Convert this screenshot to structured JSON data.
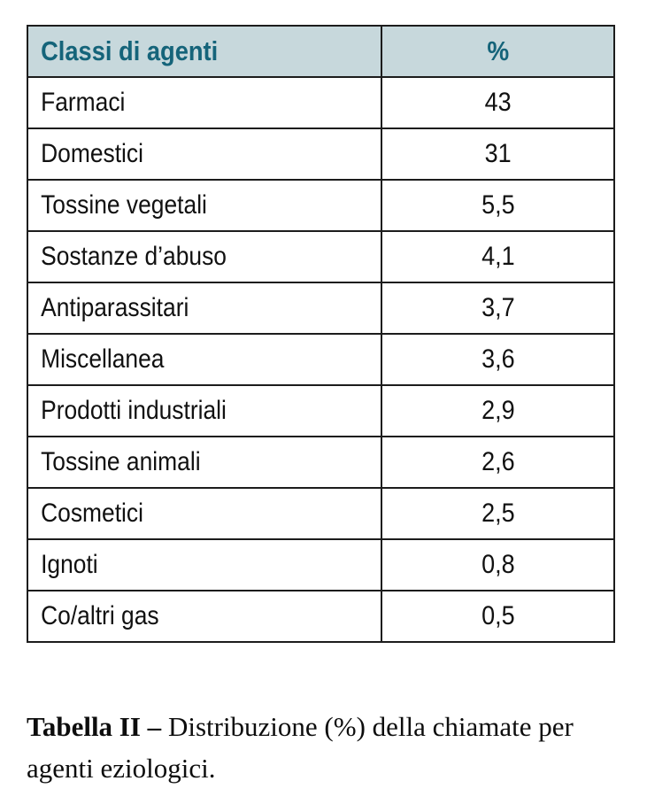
{
  "table": {
    "headers": {
      "agent_class": "Classi di agenti",
      "percent": "%"
    },
    "rows": [
      {
        "label": "Farmaci",
        "value": "43"
      },
      {
        "label": "Domestici",
        "value": "31"
      },
      {
        "label": "Tossine vegetali",
        "value": "5,5"
      },
      {
        "label": "Sostanze d’abuso",
        "value": "4,1"
      },
      {
        "label": "Antiparassitari",
        "value": "3,7"
      },
      {
        "label": "Miscellanea",
        "value": "3,6"
      },
      {
        "label": "Prodotti industriali",
        "value": "2,9"
      },
      {
        "label": "Tossine animali",
        "value": "2,6"
      },
      {
        "label": "Cosmetici",
        "value": "2,5"
      },
      {
        "label": "Ignoti",
        "value": "0,8"
      },
      {
        "label": "Co/altri gas",
        "value": "0,5"
      }
    ]
  },
  "caption": {
    "label": "Tabella II –",
    "text": " Distribuzione (%) della chiamate per agenti eziologici."
  },
  "colors": {
    "header_bg": "#c7d8dc",
    "header_text": "#15647a",
    "border": "#1c1c1c",
    "body_text": "#111111"
  },
  "chart_data": {
    "type": "table",
    "title": "Tabella II – Distribuzione (%) della chiamate per agenti eziologici.",
    "columns": [
      "Classi di agenti",
      "%"
    ],
    "categories": [
      "Farmaci",
      "Domestici",
      "Tossine vegetali",
      "Sostanze d’abuso",
      "Antiparassitari",
      "Miscellanea",
      "Prodotti industriali",
      "Tossine animali",
      "Cosmetici",
      "Ignoti",
      "Co/altri gas"
    ],
    "values": [
      43,
      31,
      5.5,
      4.1,
      3.7,
      3.6,
      2.9,
      2.6,
      2.5,
      0.8,
      0.5
    ]
  }
}
